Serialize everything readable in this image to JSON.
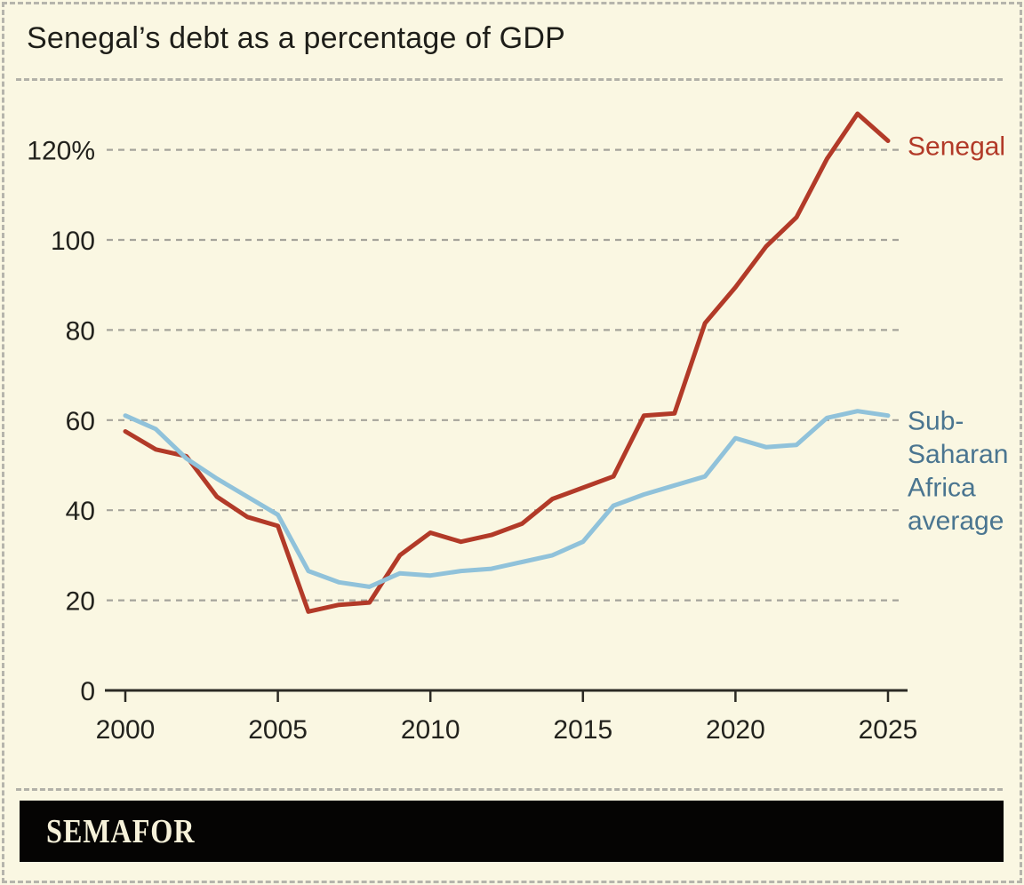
{
  "title": "Senegal’s debt as a percentage of GDP",
  "footer": {
    "brand": "SEMAFOR"
  },
  "colors": {
    "background": "#faf7e2",
    "border_dash": "#b6b5ac",
    "gridline": "#a5a49b",
    "axis": "#2b2a24",
    "tick_text": "#22221d",
    "footer_bar": "#050403",
    "brand_text": "#f6f1d9",
    "senegal_red": "#b23a28",
    "ssa_blue": "#90c2da",
    "ssa_label_blue": "#4a7590"
  },
  "chart_data": {
    "type": "line",
    "title": "Senegal’s debt as a percentage of GDP",
    "xlabel": "",
    "ylabel": "",
    "grid": "horizontal dashed",
    "legend_position": "right-of-line end labels",
    "xlim": [
      2000,
      2025
    ],
    "ylim": [
      0,
      130
    ],
    "x_ticks": [
      2000,
      2005,
      2010,
      2015,
      2020,
      2025
    ],
    "x_tick_labels": [
      "2000",
      "2005",
      "2010",
      "2015",
      "2020",
      "2025"
    ],
    "y_ticks": [
      120,
      100,
      80,
      60,
      40,
      20,
      0
    ],
    "y_tick_labels": [
      "120%",
      "100",
      "80",
      "60",
      "40",
      "20",
      "0"
    ],
    "years": [
      2000,
      2001,
      2002,
      2003,
      2004,
      2005,
      2006,
      2007,
      2008,
      2009,
      2010,
      2011,
      2012,
      2013,
      2014,
      2015,
      2016,
      2017,
      2018,
      2019,
      2020,
      2021,
      2022,
      2023,
      2024,
      2025
    ],
    "series": [
      {
        "name": "Senegal",
        "label_lines": [
          "Senegal"
        ],
        "color": "#b23a28",
        "label_color": "#b23a28",
        "values": [
          57.5,
          53.5,
          52,
          43,
          38.5,
          36.5,
          17.5,
          19,
          19.5,
          30,
          35,
          33,
          34.5,
          37,
          42.5,
          45,
          47.5,
          61,
          61.5,
          81.5,
          89.5,
          98.5,
          105,
          118,
          128,
          122
        ]
      },
      {
        "name": "Sub-Saharan Africa average",
        "label_lines": [
          "Sub-",
          "Saharan",
          "Africa",
          "average"
        ],
        "color": "#90c2da",
        "label_color": "#4a7590",
        "values": [
          61,
          58,
          51.5,
          47,
          43,
          39,
          26.5,
          24,
          23,
          26,
          25.5,
          26.5,
          27,
          28.5,
          30,
          33,
          41,
          43.5,
          45.5,
          47.5,
          56,
          54,
          54.5,
          60.5,
          62,
          61
        ]
      }
    ]
  }
}
